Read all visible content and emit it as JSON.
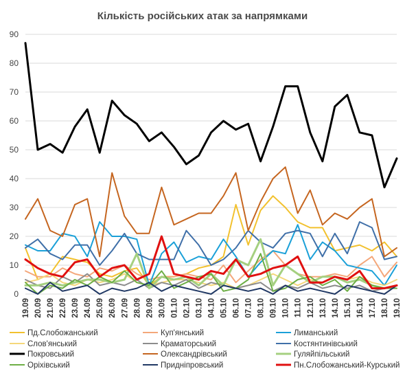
{
  "chart_data": {
    "type": "line",
    "title": "Кількість російських атак за напрямками",
    "xlabel": "",
    "ylabel": "",
    "ylim": [
      0,
      90
    ],
    "yticks": [
      0,
      10,
      20,
      30,
      40,
      50,
      60,
      70,
      80,
      90
    ],
    "grid": "horizontal",
    "legend_position": "bottom",
    "x": [
      "19.09",
      "20.09",
      "21.09",
      "22.09",
      "23.09",
      "24.09",
      "25.09",
      "26.09",
      "27.09",
      "28.09",
      "29.09",
      "30.09",
      "01.10",
      "02.10",
      "03.10",
      "04.10",
      "05.10",
      "06.10",
      "07.10",
      "08.10",
      "09.10",
      "10.10",
      "11.10",
      "12.10",
      "13.10",
      "14.10",
      "15.10",
      "16.10",
      "17.10",
      "18.10",
      "19.10"
    ],
    "series": [
      {
        "name": "Пд.Слобожанський",
        "color": "#f2c12e",
        "width": 2,
        "values": [
          16,
          5,
          7,
          13,
          12,
          11,
          7,
          6,
          8,
          9,
          3,
          6,
          6,
          7,
          9,
          10,
          13,
          31,
          17,
          29,
          34,
          30,
          25,
          23,
          23,
          15,
          16,
          17,
          15,
          18,
          13
        ]
      },
      {
        "name": "Куп'янський",
        "color": "#f4a77a",
        "width": 2,
        "values": [
          8,
          6,
          6,
          9,
          7,
          6,
          9,
          8,
          10,
          7,
          5,
          6,
          6,
          7,
          6,
          5,
          10,
          4,
          8,
          12,
          15,
          10,
          7,
          6,
          6,
          7,
          6,
          10,
          13,
          6,
          11
        ]
      },
      {
        "name": "Лиманський",
        "color": "#1aa0d8",
        "width": 2,
        "values": [
          17,
          15,
          15,
          21,
          20,
          13,
          25,
          20,
          20,
          19,
          3,
          14,
          18,
          11,
          13,
          12,
          19,
          13,
          6,
          11,
          15,
          14,
          24,
          12,
          18,
          15,
          10,
          9,
          8,
          3,
          10
        ]
      },
      {
        "name": "Слов'янський",
        "color": "#f5d77a",
        "width": 2,
        "values": [
          4,
          5,
          7,
          4,
          3,
          5,
          4,
          5,
          7,
          4,
          3,
          4,
          5,
          5,
          4,
          3,
          4,
          2,
          3,
          5,
          7,
          5,
          3,
          5,
          4,
          6,
          5,
          6,
          4,
          3,
          5
        ]
      },
      {
        "name": "Краматорський",
        "color": "#8c8c8c",
        "width": 2,
        "values": [
          5,
          3,
          2,
          6,
          4,
          7,
          3,
          4,
          3,
          5,
          2,
          4,
          3,
          5,
          2,
          4,
          3,
          2,
          3,
          4,
          1,
          3,
          2,
          4,
          2,
          3,
          2,
          3,
          1,
          2,
          3
        ]
      },
      {
        "name": "Костянтинівський",
        "color": "#3f6fa8",
        "width": 2,
        "values": [
          16,
          19,
          14,
          12,
          17,
          17,
          10,
          15,
          21,
          14,
          12,
          12,
          12,
          22,
          17,
          10,
          12,
          16,
          22,
          18,
          16,
          21,
          22,
          21,
          13,
          21,
          14,
          25,
          23,
          12,
          13
        ]
      },
      {
        "name": "Покровський",
        "color": "#000000",
        "width": 3,
        "values": [
          87,
          50,
          52,
          49,
          58,
          64,
          49,
          67,
          62,
          59,
          53,
          56,
          51,
          45,
          48,
          56,
          60,
          57,
          59,
          46,
          58,
          72,
          72,
          56,
          46,
          65,
          69,
          56,
          55,
          37,
          47
        ]
      },
      {
        "name": "Олександрівський",
        "color": "#c5651f",
        "width": 2,
        "values": [
          26,
          33,
          22,
          20,
          31,
          33,
          13,
          42,
          27,
          21,
          21,
          37,
          24,
          26,
          28,
          28,
          34,
          42,
          22,
          32,
          40,
          44,
          28,
          36,
          24,
          28,
          26,
          30,
          33,
          13,
          16
        ]
      },
      {
        "name": "Гуляйпільський",
        "color": "#a5d080",
        "width": 3,
        "values": [
          3,
          3,
          4,
          3,
          4,
          5,
          5,
          4,
          5,
          14,
          2,
          6,
          5,
          6,
          3,
          7,
          3,
          12,
          10,
          19,
          3,
          10,
          7,
          4,
          6,
          6,
          4,
          5,
          3,
          2,
          3
        ]
      },
      {
        "name": "Оріхівський",
        "color": "#6dae45",
        "width": 2,
        "values": [
          4,
          0,
          3,
          2,
          5,
          3,
          6,
          4,
          8,
          4,
          3,
          8,
          2,
          4,
          6,
          7,
          1,
          2,
          5,
          14,
          1,
          2,
          5,
          6,
          3,
          5,
          1,
          6,
          3,
          2,
          2
        ]
      },
      {
        "name": "Придніпровський",
        "color": "#203864",
        "width": 2,
        "values": [
          2,
          0,
          4,
          1,
          2,
          3,
          0,
          2,
          1,
          2,
          4,
          1,
          3,
          2,
          1,
          0,
          3,
          2,
          1,
          2,
          0,
          3,
          1,
          2,
          1,
          0,
          3,
          2,
          1,
          0,
          3
        ]
      },
      {
        "name": "Пн.Слобожанський-Курський",
        "color": "#e01010",
        "width": 3,
        "values": [
          12,
          9,
          7,
          6,
          11,
          12,
          6,
          9,
          10,
          5,
          7,
          20,
          7,
          6,
          5,
          8,
          7,
          12,
          6,
          7,
          9,
          10,
          13,
          4,
          4,
          6,
          5,
          8,
          2,
          2,
          3
        ]
      }
    ]
  }
}
